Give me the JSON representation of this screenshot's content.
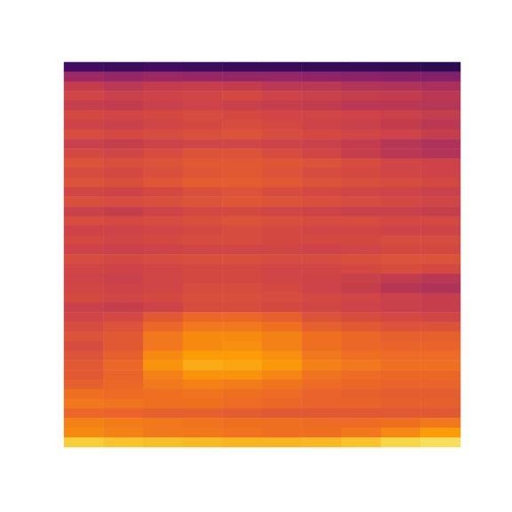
{
  "chart_data": {
    "type": "heatmap",
    "color": "inferno",
    "tick_labels": false,
    "zlim": [
      0,
      1
    ],
    "cells": [
      [
        0.2,
        0.19,
        0.2,
        0.19,
        0.18,
        0.18,
        0.17,
        0.17,
        0.16,
        0.15
      ],
      [
        0.42,
        0.4,
        0.42,
        0.41,
        0.4,
        0.4,
        0.39,
        0.38,
        0.37,
        0.36
      ],
      [
        0.52,
        0.5,
        0.52,
        0.53,
        0.52,
        0.5,
        0.5,
        0.48,
        0.47,
        0.46
      ],
      [
        0.56,
        0.54,
        0.55,
        0.56,
        0.57,
        0.55,
        0.54,
        0.53,
        0.52,
        0.5
      ],
      [
        0.53,
        0.52,
        0.54,
        0.55,
        0.54,
        0.53,
        0.52,
        0.5,
        0.5,
        0.49
      ],
      [
        0.57,
        0.56,
        0.57,
        0.58,
        0.57,
        0.56,
        0.56,
        0.55,
        0.54,
        0.53
      ],
      [
        0.55,
        0.54,
        0.56,
        0.57,
        0.58,
        0.57,
        0.55,
        0.54,
        0.52,
        0.5
      ],
      [
        0.58,
        0.57,
        0.58,
        0.59,
        0.6,
        0.58,
        0.57,
        0.56,
        0.55,
        0.53
      ],
      [
        0.54,
        0.53,
        0.55,
        0.56,
        0.56,
        0.55,
        0.54,
        0.52,
        0.49,
        0.47
      ],
      [
        0.57,
        0.56,
        0.58,
        0.6,
        0.6,
        0.58,
        0.56,
        0.53,
        0.5,
        0.48
      ],
      [
        0.6,
        0.59,
        0.6,
        0.62,
        0.62,
        0.61,
        0.6,
        0.58,
        0.56,
        0.55
      ],
      [
        0.58,
        0.57,
        0.59,
        0.61,
        0.62,
        0.6,
        0.58,
        0.57,
        0.56,
        0.55
      ],
      [
        0.6,
        0.59,
        0.61,
        0.63,
        0.63,
        0.62,
        0.6,
        0.59,
        0.58,
        0.57
      ],
      [
        0.56,
        0.55,
        0.57,
        0.59,
        0.6,
        0.58,
        0.57,
        0.56,
        0.55,
        0.54
      ],
      [
        0.59,
        0.58,
        0.59,
        0.6,
        0.61,
        0.6,
        0.59,
        0.58,
        0.57,
        0.56
      ],
      [
        0.54,
        0.53,
        0.55,
        0.57,
        0.57,
        0.56,
        0.55,
        0.54,
        0.54,
        0.53
      ],
      [
        0.58,
        0.57,
        0.58,
        0.59,
        0.6,
        0.59,
        0.58,
        0.58,
        0.57,
        0.57
      ],
      [
        0.55,
        0.55,
        0.56,
        0.57,
        0.58,
        0.57,
        0.56,
        0.56,
        0.55,
        0.55
      ],
      [
        0.57,
        0.56,
        0.57,
        0.58,
        0.58,
        0.57,
        0.57,
        0.57,
        0.58,
        0.58
      ],
      [
        0.55,
        0.54,
        0.55,
        0.56,
        0.56,
        0.56,
        0.55,
        0.56,
        0.57,
        0.57
      ],
      [
        0.58,
        0.57,
        0.58,
        0.59,
        0.59,
        0.58,
        0.58,
        0.59,
        0.6,
        0.6
      ],
      [
        0.56,
        0.55,
        0.56,
        0.57,
        0.57,
        0.56,
        0.56,
        0.57,
        0.58,
        0.57
      ],
      [
        0.55,
        0.54,
        0.56,
        0.57,
        0.57,
        0.56,
        0.55,
        0.54,
        0.52,
        0.5
      ],
      [
        0.56,
        0.55,
        0.56,
        0.58,
        0.58,
        0.57,
        0.55,
        0.53,
        0.49,
        0.47
      ],
      [
        0.57,
        0.56,
        0.57,
        0.59,
        0.59,
        0.58,
        0.57,
        0.56,
        0.54,
        0.53
      ],
      [
        0.54,
        0.53,
        0.55,
        0.58,
        0.58,
        0.57,
        0.56,
        0.55,
        0.54,
        0.53
      ],
      [
        0.56,
        0.57,
        0.62,
        0.66,
        0.66,
        0.64,
        0.6,
        0.58,
        0.57,
        0.56
      ],
      [
        0.58,
        0.6,
        0.66,
        0.7,
        0.7,
        0.68,
        0.64,
        0.62,
        0.6,
        0.6
      ],
      [
        0.6,
        0.62,
        0.7,
        0.74,
        0.74,
        0.72,
        0.68,
        0.66,
        0.64,
        0.64
      ],
      [
        0.58,
        0.62,
        0.7,
        0.74,
        0.75,
        0.72,
        0.68,
        0.66,
        0.65,
        0.65
      ],
      [
        0.6,
        0.64,
        0.74,
        0.78,
        0.78,
        0.75,
        0.7,
        0.68,
        0.67,
        0.67
      ],
      [
        0.62,
        0.66,
        0.76,
        0.81,
        0.8,
        0.77,
        0.72,
        0.7,
        0.68,
        0.68
      ],
      [
        0.62,
        0.65,
        0.72,
        0.76,
        0.76,
        0.73,
        0.69,
        0.67,
        0.66,
        0.66
      ],
      [
        0.64,
        0.66,
        0.7,
        0.72,
        0.71,
        0.69,
        0.67,
        0.66,
        0.65,
        0.65
      ],
      [
        0.68,
        0.67,
        0.68,
        0.69,
        0.68,
        0.67,
        0.65,
        0.64,
        0.63,
        0.63
      ],
      [
        0.7,
        0.69,
        0.68,
        0.68,
        0.67,
        0.66,
        0.65,
        0.65,
        0.64,
        0.64
      ],
      [
        0.66,
        0.65,
        0.64,
        0.64,
        0.63,
        0.62,
        0.62,
        0.62,
        0.62,
        0.62
      ],
      [
        0.72,
        0.71,
        0.7,
        0.69,
        0.68,
        0.68,
        0.67,
        0.67,
        0.68,
        0.7
      ],
      [
        0.74,
        0.72,
        0.7,
        0.7,
        0.69,
        0.68,
        0.68,
        0.7,
        0.74,
        0.78
      ],
      [
        0.88,
        0.86,
        0.85,
        0.84,
        0.83,
        0.83,
        0.84,
        0.86,
        0.9,
        0.92
      ]
    ]
  }
}
